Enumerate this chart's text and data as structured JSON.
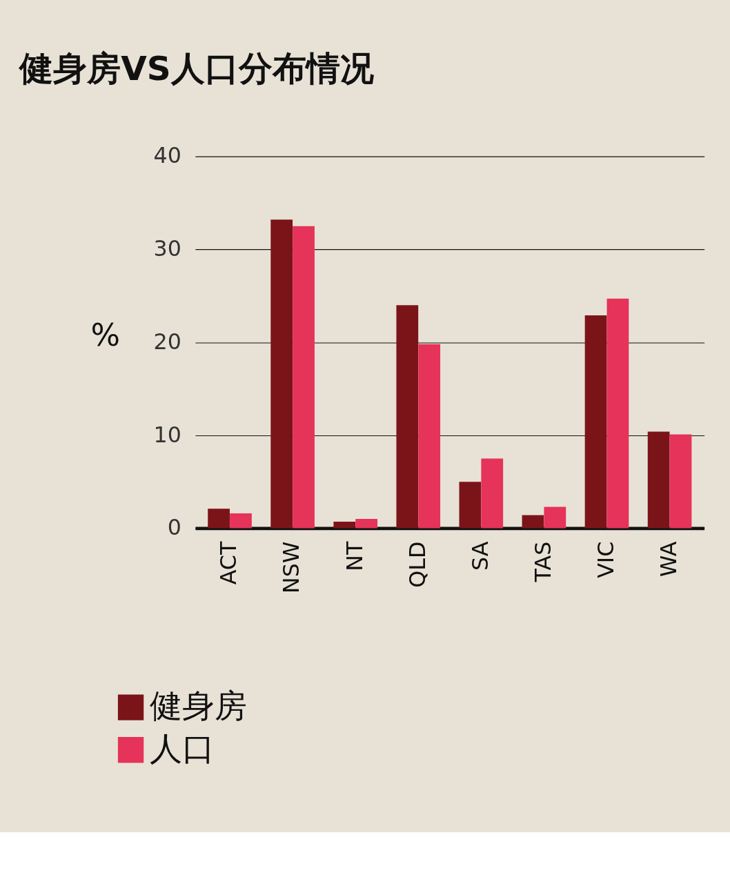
{
  "chart_data": {
    "type": "bar",
    "title": "健身房VS人口分布情况",
    "ylabel": "%",
    "categories": [
      "ACT",
      "NSW",
      "NT",
      "QLD",
      "SA",
      "TAS",
      "VIC",
      "WA"
    ],
    "series": [
      {
        "name": "健身房",
        "color": "#7b1419",
        "values": [
          2.1,
          33.2,
          0.7,
          24.0,
          5.0,
          1.4,
          22.9,
          10.4
        ]
      },
      {
        "name": "人口",
        "color": "#e5335a",
        "values": [
          1.6,
          32.5,
          1.0,
          19.8,
          7.5,
          2.3,
          24.7,
          10.1
        ]
      }
    ],
    "ylim": [
      0,
      40
    ],
    "yticks": [
      0,
      10,
      20,
      30,
      40
    ],
    "grid": "y",
    "legend": "bottom"
  }
}
